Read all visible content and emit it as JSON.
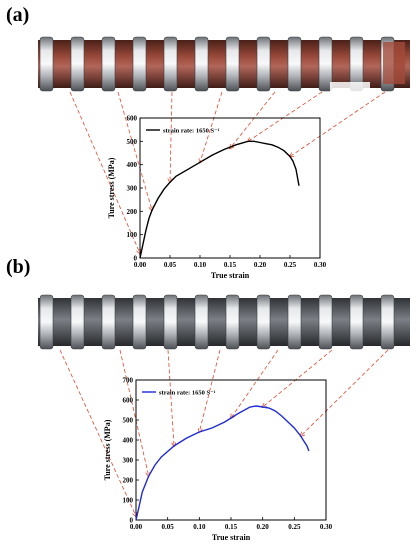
{
  "figure": {
    "panel_a_label": "(a)",
    "panel_b_label": "(b)"
  },
  "colors": {
    "curve_a": "#000000",
    "curve_b": "#1f2bd6",
    "arrow": "#e04a2e",
    "metal": "#c9ccd0",
    "rust": "#8a3a2a"
  },
  "chart_data": [
    {
      "type": "line",
      "panel": "(a)",
      "xlabel": "True strain",
      "ylabel": "Ture stress (MPa)",
      "xlim": [
        0.0,
        0.3
      ],
      "ylim": [
        0,
        600
      ],
      "xticks": [
        "0.00",
        "0.05",
        "0.10",
        "0.15",
        "0.20",
        "0.25",
        "0.30"
      ],
      "yticks": [
        "0",
        "100",
        "200",
        "300",
        "400",
        "500",
        "600"
      ],
      "legend": "top-left",
      "series": [
        {
          "name": "strain rate: 1650 S⁻¹",
          "color": "#000000",
          "x": [
            0.0,
            0.005,
            0.01,
            0.015,
            0.02,
            0.03,
            0.04,
            0.05,
            0.06,
            0.08,
            0.1,
            0.12,
            0.14,
            0.16,
            0.18,
            0.19,
            0.2,
            0.21,
            0.22,
            0.23,
            0.24,
            0.25,
            0.255,
            0.26,
            0.265
          ],
          "y": [
            0,
            60,
            120,
            170,
            205,
            255,
            295,
            325,
            350,
            380,
            410,
            440,
            465,
            485,
            500,
            500,
            495,
            490,
            485,
            475,
            460,
            435,
            415,
            380,
            310
          ]
        }
      ]
    },
    {
      "type": "line",
      "panel": "(b)",
      "xlabel": "True strain",
      "ylabel": "Ture stress (MPa)",
      "xlim": [
        0.0,
        0.3
      ],
      "ylim": [
        0,
        700
      ],
      "xticks": [
        "0.00",
        "0.05",
        "0.10",
        "0.15",
        "0.20",
        "0.25",
        "0.30"
      ],
      "yticks": [
        "0",
        "100",
        "200",
        "300",
        "400",
        "500",
        "600",
        "700"
      ],
      "legend": "top-left",
      "series": [
        {
          "name": "strain rate: 1650 S⁻¹",
          "color": "#1f2bd6",
          "x": [
            0.0,
            0.005,
            0.01,
            0.02,
            0.03,
            0.04,
            0.06,
            0.08,
            0.1,
            0.12,
            0.14,
            0.16,
            0.18,
            0.19,
            0.2,
            0.21,
            0.22,
            0.23,
            0.24,
            0.25,
            0.26,
            0.265,
            0.27,
            0.273
          ],
          "y": [
            0,
            70,
            140,
            220,
            275,
            315,
            370,
            410,
            440,
            460,
            490,
            530,
            565,
            570,
            565,
            560,
            545,
            520,
            490,
            460,
            420,
            395,
            370,
            345
          ]
        }
      ]
    }
  ]
}
